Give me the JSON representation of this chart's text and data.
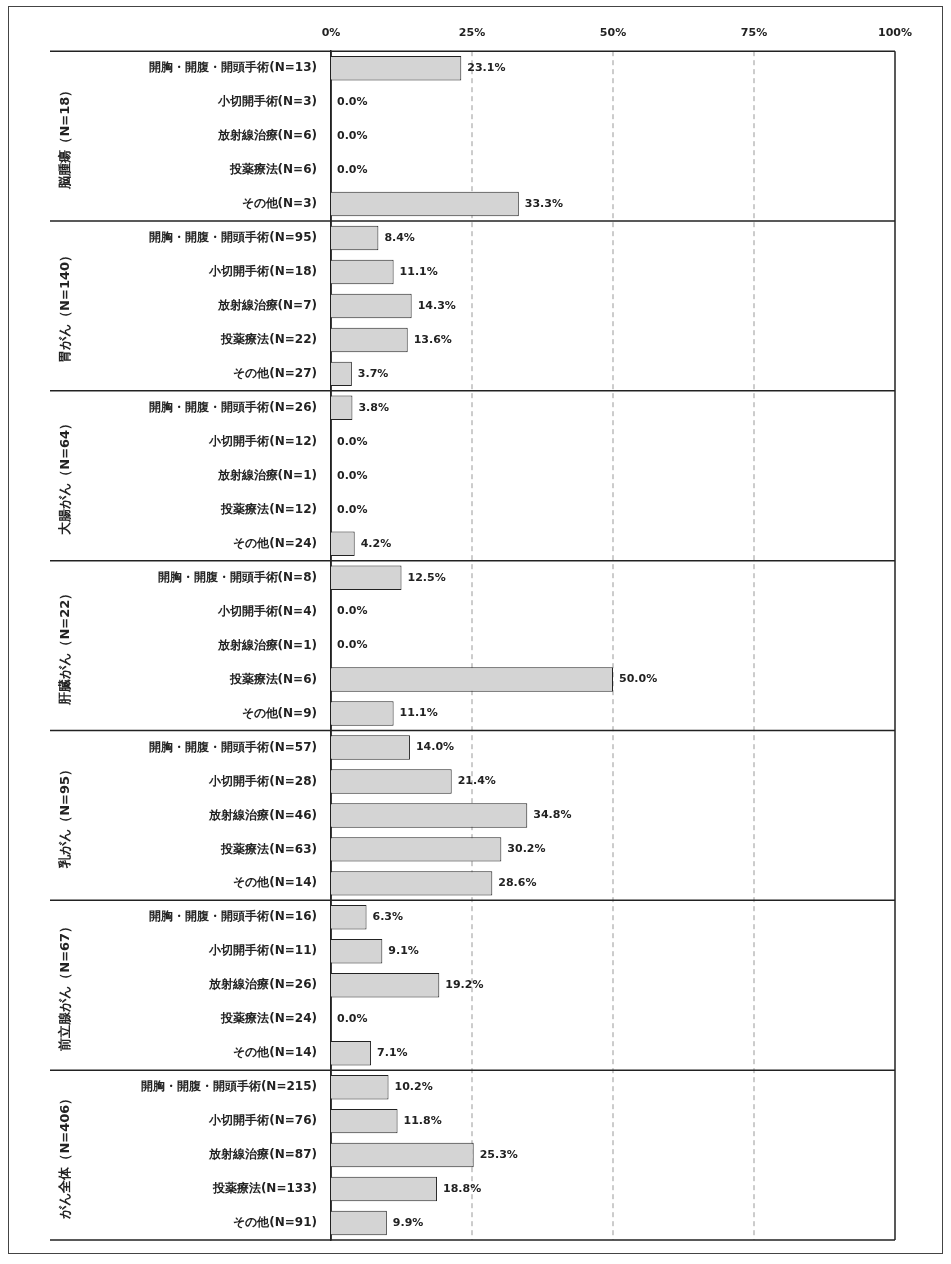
{
  "chart_data": {
    "type": "bar",
    "orientation": "horizontal",
    "categories": [
      "開胸・開腹・開頭手術(N=13)",
      "小切開手術(N=3)",
      "放射線治療(N=6)",
      "投薬療法(N=6)",
      "その他(N=3)",
      "開胸・開腹・開頭手術(N=95)",
      "小切開手術(N=18)",
      "放射線治療(N=7)",
      "投薬療法(N=22)",
      "その他(N=27)",
      "開胸・開腹・開頭手術(N=26)",
      "小切開手術(N=12)",
      "放射線治療(N=1)",
      "投薬療法(N=12)",
      "その他(N=24)",
      "開胸・開腹・開頭手術(N=8)",
      "小切開手術(N=4)",
      "放射線治療(N=1)",
      "投薬療法(N=6)",
      "その他(N=9)",
      "開胸・開腹・開頭手術(N=57)",
      "小切開手術(N=28)",
      "放射線治療(N=46)",
      "投薬療法(N=63)",
      "その他(N=14)",
      "開胸・開腹・開頭手術(N=16)",
      "小切開手術(N=11)",
      "放射線治療(N=26)",
      "投薬療法(N=24)",
      "その他(N=14)",
      "開胸・開腹・開頭手術(N=215)",
      "小切開手術(N=76)",
      "放射線治療(N=87)",
      "投薬療法(N=133)",
      "その他(N=91)"
    ],
    "values": [
      23.1,
      0,
      0,
      0,
      33.3,
      8.4,
      11.1,
      14.3,
      13.6,
      3.7,
      3.8,
      0,
      0,
      0,
      4.2,
      12.5,
      0,
      0,
      50.0,
      11.1,
      14.0,
      21.4,
      34.8,
      30.2,
      28.6,
      6.3,
      9.1,
      19.2,
      0,
      7.1,
      10.2,
      11.8,
      25.3,
      18.8,
      9.9
    ],
    "value_labels": [
      "23.1%",
      "0.0%",
      "0.0%",
      "0.0%",
      "33.3%",
      "8.4%",
      "11.1%",
      "14.3%",
      "13.6%",
      "3.7%",
      "3.8%",
      "0.0%",
      "0.0%",
      "0.0%",
      "4.2%",
      "12.5%",
      "0.0%",
      "0.0%",
      "50.0%",
      "11.1%",
      "14.0%",
      "21.4%",
      "34.8%",
      "30.2%",
      "28.6%",
      "6.3%",
      "9.1%",
      "19.2%",
      "0.0%",
      "7.1%",
      "10.2%",
      "11.8%",
      "25.3%",
      "18.8%",
      "9.9%"
    ],
    "color": "#d4d4d4",
    "xlim": [
      0,
      100
    ],
    "xticks": [
      {
        "value": 0,
        "label": "0%"
      },
      {
        "value": 25,
        "label": "25%"
      },
      {
        "value": 50,
        "label": "50%"
      },
      {
        "value": 75,
        "label": "75%"
      },
      {
        "value": 100,
        "label": "100%"
      }
    ],
    "grid": "x",
    "legend": false,
    "annotations": [
      "脳腫瘍（N=18）",
      "胃がん（N=140）",
      "大腸がん（N=64）",
      "肝臓がん（N=22）",
      "乳がん（N=95）",
      "前立腺がん（N=67）",
      "がん全体（N=406）"
    ]
  }
}
